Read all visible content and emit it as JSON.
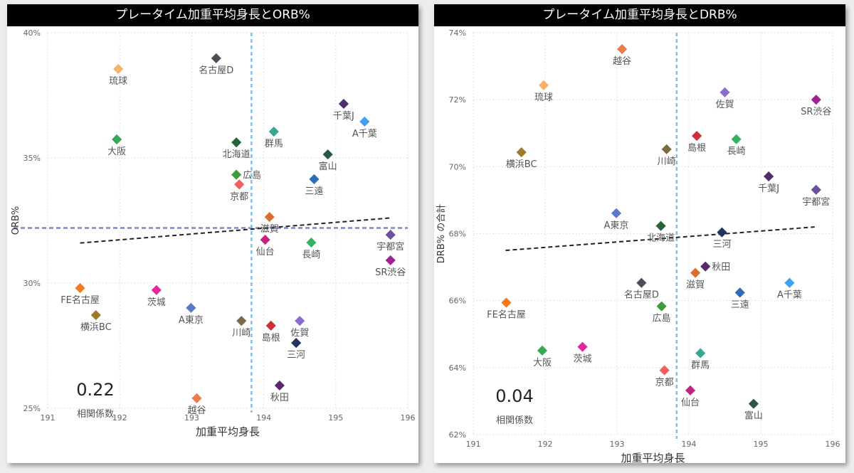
{
  "chart_data": [
    {
      "type": "scatter",
      "title": "プレータイム加重平均身長とORB%",
      "xlabel": "加重平均身長",
      "ylabel": "ORB%",
      "xlim": [
        191,
        196
      ],
      "ylim": [
        25,
        40
      ],
      "x_ticks": [
        "191",
        "192",
        "193",
        "194",
        "195",
        "196"
      ],
      "x_tick_values": [
        191,
        192,
        193,
        194,
        195,
        196
      ],
      "y_ticks": [
        "25%",
        "30%",
        "35%",
        "40%"
      ],
      "y_tick_values": [
        25,
        30,
        35,
        40
      ],
      "grid": true,
      "average_x": 193.83,
      "average_y": 32.2,
      "trend_line": {
        "x": [
          191.45,
          195.75
        ],
        "y": [
          31.6,
          32.6
        ]
      },
      "correlation": {
        "value": "0.22",
        "label": "相関係数"
      },
      "points": [
        {
          "name": "琉球",
          "x": 191.98,
          "y": 38.55,
          "color": "#f4b26b",
          "label_pos": "below"
        },
        {
          "name": "名古屋D",
          "x": 193.34,
          "y": 38.98,
          "color": "#4a4f5c",
          "label_pos": "below"
        },
        {
          "name": "大阪",
          "x": 191.96,
          "y": 35.74,
          "color": "#35a853",
          "label_pos": "below"
        },
        {
          "name": "北海道",
          "x": 193.62,
          "y": 35.62,
          "color": "#276338",
          "label_pos": "below"
        },
        {
          "name": "群馬",
          "x": 194.14,
          "y": 36.05,
          "color": "#3aa595",
          "label_pos": "below"
        },
        {
          "name": "千葉J",
          "x": 195.11,
          "y": 37.16,
          "color": "#4c2f6b",
          "label_pos": "below"
        },
        {
          "name": "A千葉",
          "x": 195.4,
          "y": 36.45,
          "color": "#3fa0f0",
          "label_pos": "below"
        },
        {
          "name": "富山",
          "x": 194.89,
          "y": 35.14,
          "color": "#2a5649",
          "label_pos": "below"
        },
        {
          "name": "広島",
          "x": 193.62,
          "y": 34.33,
          "color": "#3f9a3b",
          "label_pos": "right"
        },
        {
          "name": "京都",
          "x": 193.66,
          "y": 33.94,
          "color": "#f25f5c",
          "label_pos": "below"
        },
        {
          "name": "三遠",
          "x": 194.7,
          "y": 34.15,
          "color": "#2a6db5",
          "label_pos": "below"
        },
        {
          "name": "滋賀",
          "x": 194.08,
          "y": 32.64,
          "color": "#d96f2e",
          "label_pos": "below"
        },
        {
          "name": "仙台",
          "x": 194.02,
          "y": 31.73,
          "color": "#c2237e",
          "label_pos": "below"
        },
        {
          "name": "長崎",
          "x": 194.66,
          "y": 31.62,
          "color": "#37b35f",
          "label_pos": "below"
        },
        {
          "name": "宇都宮",
          "x": 195.76,
          "y": 31.93,
          "color": "#6c4f9e",
          "label_pos": "below"
        },
        {
          "name": "SR渋谷",
          "x": 195.76,
          "y": 30.91,
          "color": "#a2219b",
          "label_pos": "below"
        },
        {
          "name": "FE名古屋",
          "x": 191.45,
          "y": 29.8,
          "color": "#f47a20",
          "label_pos": "below"
        },
        {
          "name": "横浜BC",
          "x": 191.67,
          "y": 28.72,
          "color": "#9c7a2c",
          "label_pos": "below"
        },
        {
          "name": "茨城",
          "x": 192.51,
          "y": 29.72,
          "color": "#e0289a",
          "label_pos": "below"
        },
        {
          "name": "A東京",
          "x": 192.99,
          "y": 29.01,
          "color": "#5b78c9",
          "label_pos": "below"
        },
        {
          "name": "川崎",
          "x": 193.69,
          "y": 28.49,
          "color": "#7d6b45",
          "label_pos": "below"
        },
        {
          "name": "島根",
          "x": 194.1,
          "y": 28.3,
          "color": "#cf2f3a",
          "label_pos": "below"
        },
        {
          "name": "佐賀",
          "x": 194.5,
          "y": 28.49,
          "color": "#8b6bd1",
          "label_pos": "below"
        },
        {
          "name": "三河",
          "x": 194.45,
          "y": 27.61,
          "color": "#1f3563",
          "label_pos": "below"
        },
        {
          "name": "秋田",
          "x": 194.22,
          "y": 25.91,
          "color": "#55296b",
          "label_pos": "below"
        },
        {
          "name": "越谷",
          "x": 193.07,
          "y": 25.4,
          "color": "#ec7c4c",
          "label_pos": "below"
        }
      ]
    },
    {
      "type": "scatter",
      "title": "プレータイム加重平均身長とDRB%",
      "xlabel": "加重平均身長",
      "ylabel": "DRB% の合計",
      "xlim": [
        191,
        196
      ],
      "ylim": [
        62,
        74
      ],
      "x_ticks": [
        "191",
        "192",
        "193",
        "194",
        "195",
        "196"
      ],
      "x_tick_values": [
        191,
        192,
        193,
        194,
        195,
        196
      ],
      "y_ticks": [
        "62%",
        "64%",
        "66%",
        "68%",
        "70%",
        "72%",
        "74%"
      ],
      "y_tick_values": [
        62,
        64,
        66,
        68,
        70,
        72,
        74
      ],
      "grid": true,
      "average_x": 193.83,
      "trend_line": {
        "x": [
          191.45,
          195.75
        ],
        "y": [
          67.5,
          68.2
        ]
      },
      "correlation": {
        "value": "0.04",
        "label": "相関係数"
      },
      "points": [
        {
          "name": "越谷",
          "x": 193.07,
          "y": 73.51,
          "color": "#ec7c4c",
          "label_pos": "below"
        },
        {
          "name": "琉球",
          "x": 191.98,
          "y": 72.43,
          "color": "#f4b26b",
          "label_pos": "below"
        },
        {
          "name": "佐賀",
          "x": 194.5,
          "y": 72.22,
          "color": "#8b6bd1",
          "label_pos": "below"
        },
        {
          "name": "SR渋谷",
          "x": 195.77,
          "y": 72.0,
          "color": "#a2219b",
          "label_pos": "below"
        },
        {
          "name": "島根",
          "x": 194.11,
          "y": 70.92,
          "color": "#cf2f3a",
          "label_pos": "below"
        },
        {
          "name": "長崎",
          "x": 194.66,
          "y": 70.82,
          "color": "#37b35f",
          "label_pos": "below"
        },
        {
          "name": "川崎",
          "x": 193.69,
          "y": 70.52,
          "color": "#7d6b45",
          "label_pos": "below"
        },
        {
          "name": "横浜BC",
          "x": 191.67,
          "y": 70.43,
          "color": "#9c7a2c",
          "label_pos": "below"
        },
        {
          "name": "千葉J",
          "x": 195.11,
          "y": 69.71,
          "color": "#4c2f6b",
          "label_pos": "below"
        },
        {
          "name": "宇都宮",
          "x": 195.77,
          "y": 69.31,
          "color": "#6c4f9e",
          "label_pos": "below"
        },
        {
          "name": "A東京",
          "x": 192.99,
          "y": 68.61,
          "color": "#5b78c9",
          "label_pos": "below"
        },
        {
          "name": "北海道",
          "x": 193.61,
          "y": 68.23,
          "color": "#276338",
          "label_pos": "below"
        },
        {
          "name": "三河",
          "x": 194.46,
          "y": 68.04,
          "color": "#1f3563",
          "label_pos": "below"
        },
        {
          "name": "秋田",
          "x": 194.23,
          "y": 67.02,
          "color": "#55296b",
          "label_pos": "right"
        },
        {
          "name": "滋賀",
          "x": 194.09,
          "y": 66.83,
          "color": "#d96f2e",
          "label_pos": "below"
        },
        {
          "name": "名古屋D",
          "x": 193.34,
          "y": 66.53,
          "color": "#4a4f5c",
          "label_pos": "below"
        },
        {
          "name": "A千葉",
          "x": 195.4,
          "y": 66.53,
          "color": "#3fa0f0",
          "label_pos": "below"
        },
        {
          "name": "三遠",
          "x": 194.71,
          "y": 66.24,
          "color": "#2a6db5",
          "label_pos": "below"
        },
        {
          "name": "FE名古屋",
          "x": 191.46,
          "y": 65.94,
          "color": "#f47a20",
          "label_pos": "below"
        },
        {
          "name": "広島",
          "x": 193.62,
          "y": 65.83,
          "color": "#3f9a3b",
          "label_pos": "below"
        },
        {
          "name": "大阪",
          "x": 191.96,
          "y": 64.51,
          "color": "#35a853",
          "label_pos": "below"
        },
        {
          "name": "茨城",
          "x": 192.52,
          "y": 64.62,
          "color": "#e0289a",
          "label_pos": "below"
        },
        {
          "name": "群馬",
          "x": 194.16,
          "y": 64.43,
          "color": "#3aa595",
          "label_pos": "below"
        },
        {
          "name": "京都",
          "x": 193.66,
          "y": 63.92,
          "color": "#f25f5c",
          "label_pos": "below"
        },
        {
          "name": "仙台",
          "x": 194.02,
          "y": 63.32,
          "color": "#c2237e",
          "label_pos": "below"
        },
        {
          "name": "富山",
          "x": 194.9,
          "y": 62.92,
          "color": "#2a5649",
          "label_pos": "below"
        }
      ]
    }
  ]
}
